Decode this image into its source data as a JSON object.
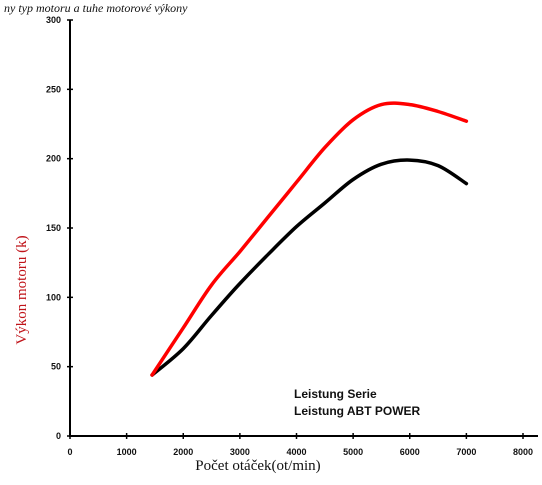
{
  "caption_top": "ny typ motoru a tuhe motorové výkony",
  "chart_data": {
    "type": "line",
    "xlabel": "Počet otáček(ot/min)",
    "ylabel": "Výkon motoru (k)",
    "xlim": [
      0,
      8000
    ],
    "ylim": [
      0,
      300
    ],
    "xticks": [
      0,
      1000,
      2000,
      3000,
      4000,
      5000,
      6000,
      7000,
      8000
    ],
    "yticks": [
      0,
      50,
      100,
      150,
      200,
      250,
      300
    ],
    "grid": false,
    "legend_position": "bottom-right",
    "series": [
      {
        "name": "Leistung Serie",
        "color": "#000000",
        "x": [
          1450,
          2000,
          2500,
          3000,
          3500,
          4000,
          4500,
          5000,
          5500,
          6000,
          6500,
          7000
        ],
        "y": [
          44,
          63,
          87,
          110,
          131,
          151,
          168,
          185,
          196,
          199,
          195,
          182
        ]
      },
      {
        "name": "Leistung ABT POWER",
        "color": "#ff0000",
        "x": [
          1450,
          2000,
          2500,
          3000,
          3500,
          4000,
          4500,
          5000,
          5500,
          6000,
          6500,
          7000
        ],
        "y": [
          44,
          78,
          109,
          133,
          158,
          183,
          208,
          228,
          239,
          239,
          234,
          227
        ]
      }
    ]
  }
}
